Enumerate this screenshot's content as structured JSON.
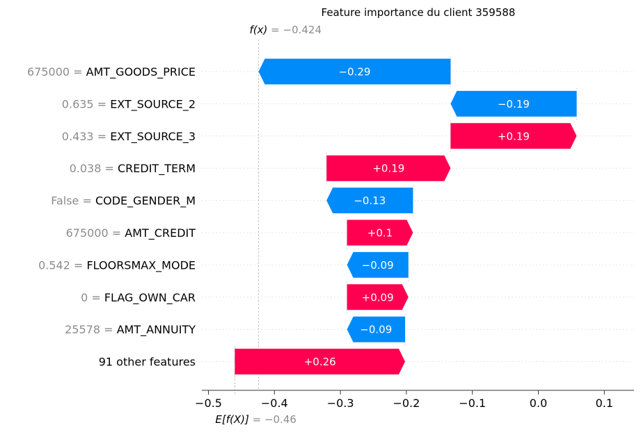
{
  "chart_data": {
    "type": "bar",
    "title": "Feature importance du client 359588",
    "fx": {
      "label": "f(x)",
      "value_text": "= −0.424",
      "value": -0.424
    },
    "ex": {
      "label": "E[f(X)]",
      "value_text": "= −0.46",
      "value": -0.46
    },
    "features": [
      {
        "value": "675000",
        "name": "AMT_GOODS_PRICE",
        "contribution": -0.29,
        "label": "−0.29",
        "start": -0.133,
        "end": -0.424
      },
      {
        "value": "0.635",
        "name": "EXT_SOURCE_2",
        "contribution": -0.19,
        "label": "−0.19",
        "start": 0.058,
        "end": -0.133
      },
      {
        "value": "0.433",
        "name": "EXT_SOURCE_3",
        "contribution": 0.19,
        "label": "+0.19",
        "start": -0.133,
        "end": 0.058
      },
      {
        "value": "0.038",
        "name": "CREDIT_TERM",
        "contribution": 0.19,
        "label": "+0.19",
        "start": -0.321,
        "end": -0.133
      },
      {
        "value": "False",
        "name": "CODE_GENDER_M",
        "contribution": -0.13,
        "label": "−0.13",
        "start": -0.19,
        "end": -0.321
      },
      {
        "value": "675000",
        "name": "AMT_CREDIT",
        "contribution": 0.1,
        "label": "+0.1",
        "start": -0.29,
        "end": -0.19
      },
      {
        "value": "0.542",
        "name": "FLOORSMAX_MODE",
        "contribution": -0.09,
        "label": "−0.09",
        "start": -0.197,
        "end": -0.29
      },
      {
        "value": "0",
        "name": "FLAG_OWN_CAR",
        "contribution": 0.09,
        "label": "+0.09",
        "start": -0.29,
        "end": -0.197
      },
      {
        "value": "25578",
        "name": "AMT_ANNUITY",
        "contribution": -0.09,
        "label": "−0.09",
        "start": -0.202,
        "end": -0.29
      },
      {
        "value": "",
        "name": "91 other features",
        "contribution": 0.26,
        "label": "+0.26",
        "start": -0.46,
        "end": -0.202
      }
    ],
    "xlim": [
      -0.51,
      0.145
    ],
    "xticks": [
      -0.5,
      -0.4,
      -0.3,
      -0.2,
      -0.1,
      0.0,
      0.1
    ],
    "xtick_labels": [
      "−0.5",
      "−0.4",
      "−0.3",
      "−0.2",
      "−0.1",
      "0.0",
      "0.1"
    ],
    "grid": "dotted row lines",
    "colors": {
      "positive": "#ff0051",
      "negative": "#008bfb",
      "muted_text": "#8c8c8c",
      "grid": "#e6e6e6",
      "axis": "#333333"
    }
  }
}
